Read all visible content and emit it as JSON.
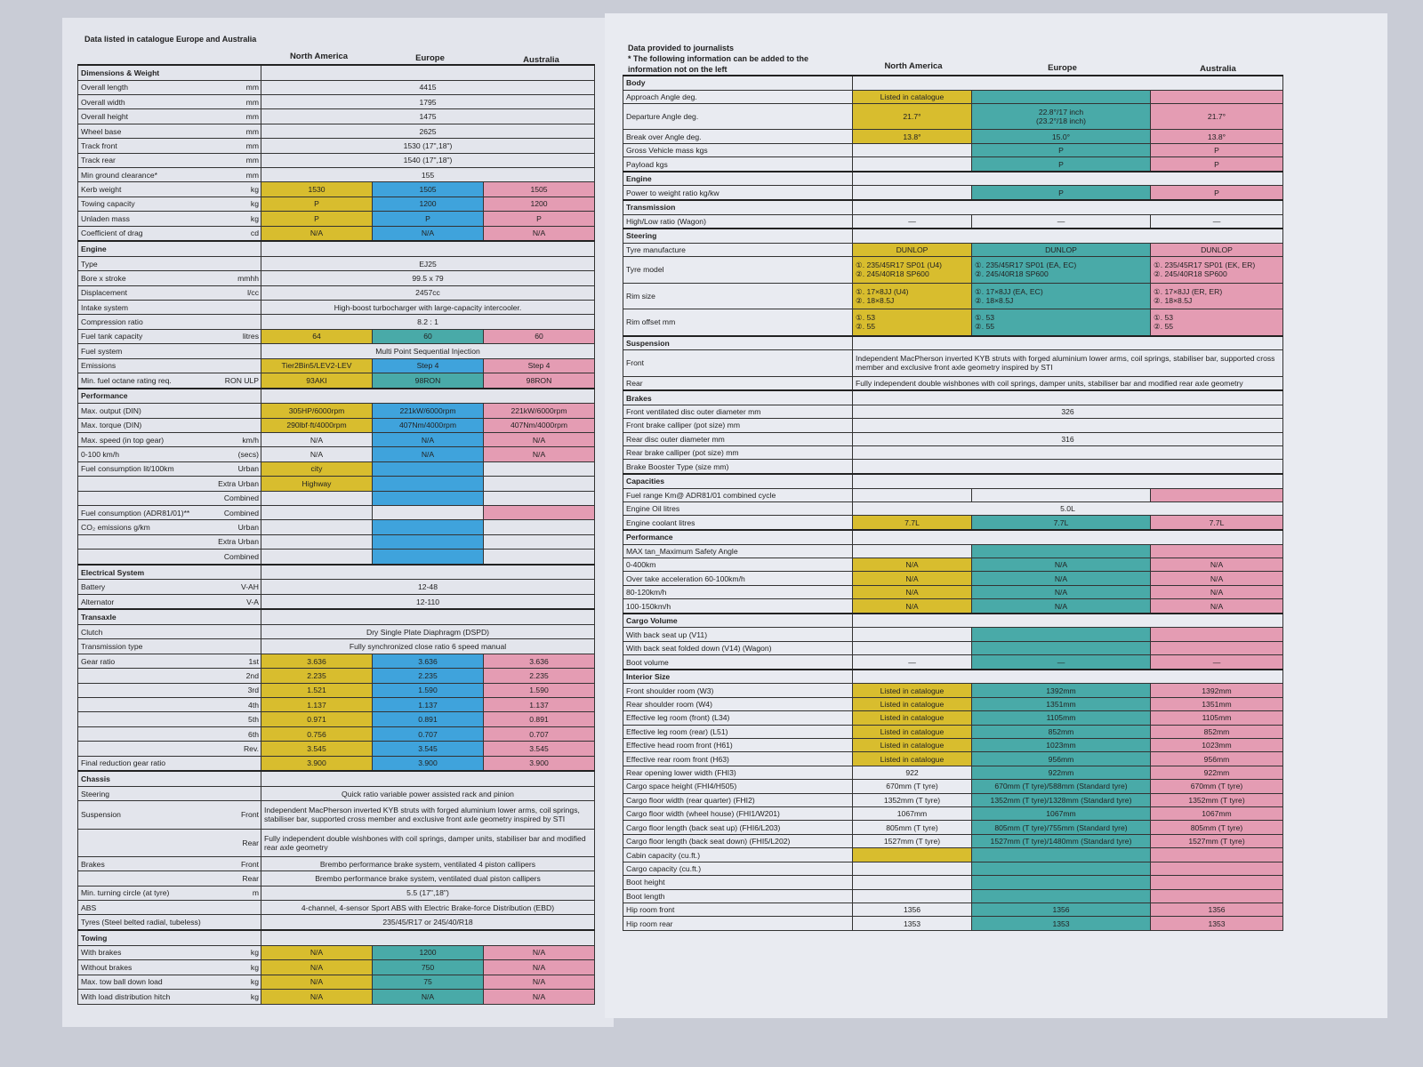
{
  "colors": {
    "y": "#d8bd2e",
    "b": "#3fa3dc",
    "t": "#49aaa8",
    "p": "#e49cb3"
  },
  "left": {
    "title": "Data listed in catalogue   Europe and Australia",
    "columns": [
      "North America",
      "Europe",
      "Australia"
    ],
    "rows": [
      {
        "sec": "Dimensions & Weight"
      },
      {
        "l": "Overall length",
        "u": "mm",
        "s": "4415"
      },
      {
        "l": "Overall width",
        "u": "mm",
        "s": "1795"
      },
      {
        "l": "Overall height",
        "u": "mm",
        "s": "1475"
      },
      {
        "l": "Wheel base",
        "u": "mm",
        "s": "2625"
      },
      {
        "l": "Track front",
        "u": "mm",
        "s": "1530 (17\",18\")"
      },
      {
        "l": "Track rear",
        "u": "mm",
        "s": "1540 (17\",18\")"
      },
      {
        "l": "Min ground clearance*",
        "u": "mm",
        "s": "155"
      },
      {
        "l": "Kerb weight",
        "u": "kg",
        "v": [
          "1530",
          "1505",
          "1505"
        ],
        "c": "ybp"
      },
      {
        "l": "Towing capacity",
        "u": "kg",
        "v": [
          "P",
          "1200",
          "1200"
        ],
        "c": "ybp"
      },
      {
        "l": "Unladen mass",
        "u": "kg",
        "v": [
          "P",
          "P",
          "P"
        ],
        "c": "ybp"
      },
      {
        "l": "Coefficient of drag",
        "u": "cd",
        "v": [
          "N/A",
          "N/A",
          "N/A"
        ],
        "c": "ybp"
      },
      {
        "sec": "Engine"
      },
      {
        "l": "Type",
        "u": "",
        "s": "EJ25"
      },
      {
        "l": "Bore x stroke",
        "u": "mmhh",
        "s": "99.5 x 79"
      },
      {
        "l": "Displacement",
        "u": "l/cc",
        "s": "2457cc"
      },
      {
        "l": "Intake system",
        "u": "",
        "s": "High-boost turbocharger with large-capacity intercooler."
      },
      {
        "l": "Compression ratio",
        "u": "",
        "s": "8.2 : 1"
      },
      {
        "l": "Fuel tank capacity",
        "u": "litres",
        "v": [
          "64",
          "60",
          "60"
        ],
        "c": "ytp"
      },
      {
        "l": "Fuel system",
        "u": "",
        "s": "Multi Point Sequential Injection"
      },
      {
        "l": "Emissions",
        "u": "",
        "v": [
          "Tier2Bin5/LEV2-LEV",
          "Step 4",
          "Step 4"
        ],
        "c": "ybp"
      },
      {
        "l": "Min. fuel octane rating req.",
        "u": "RON ULP",
        "v": [
          "93AKI",
          "98RON",
          "98RON"
        ],
        "c": "ytp"
      },
      {
        "sec": "Performance"
      },
      {
        "l": "Max. output (DIN)",
        "u": "",
        "v": [
          "305HP/6000rpm",
          "221kW/6000rpm",
          "221kW/6000rpm"
        ],
        "c": "ybp"
      },
      {
        "l": "Max. torque (DIN)",
        "u": "",
        "v": [
          "290lbf·ft/4000rpm",
          "407Nm/4000rpm",
          "407Nm/4000rpm"
        ],
        "c": "ybp"
      },
      {
        "l": "Max. speed (in top gear)",
        "u": "km/h",
        "v": [
          "N/A",
          "N/A",
          "N/A"
        ],
        "c": "wbp"
      },
      {
        "l": "0-100 km/h",
        "u": "(secs)",
        "v": [
          "N/A",
          "N/A",
          "N/A"
        ],
        "c": "wbp"
      },
      {
        "l": "Fuel consumption lit/100km",
        "u": "Urban",
        "v": [
          "city",
          "",
          ""
        ],
        "c": "ybw"
      },
      {
        "l": "",
        "u": "Extra Urban",
        "v": [
          "Highway",
          "",
          ""
        ],
        "c": "ybw"
      },
      {
        "l": "",
        "u": "Combined",
        "v": [
          "",
          "",
          ""
        ],
        "c": "wbw"
      },
      {
        "l": "Fuel consumption (ADR81/01)**",
        "u": "Combined",
        "v": [
          "",
          "",
          ""
        ],
        "c": "wwp"
      },
      {
        "l": "CO₂ emissions  g/km",
        "u": "Urban",
        "v": [
          "",
          "",
          ""
        ],
        "c": "wbw"
      },
      {
        "l": "",
        "u": "Extra Urban",
        "v": [
          "",
          "",
          ""
        ],
        "c": "wbw"
      },
      {
        "l": "",
        "u": "Combined",
        "v": [
          "",
          "",
          ""
        ],
        "c": "wbw"
      },
      {
        "sec": "Electrical System"
      },
      {
        "l": "Battery",
        "u": "V-AH",
        "s": "12-48"
      },
      {
        "l": "Alternator",
        "u": "V-A",
        "s": "12-110"
      },
      {
        "sec": "Transaxle"
      },
      {
        "l": "Clutch",
        "u": "",
        "s": "Dry Single Plate Diaphragm (DSPD)"
      },
      {
        "l": "Transmission type",
        "u": "",
        "s": "Fully synchronized close ratio 6 speed manual"
      },
      {
        "l": "Gear ratio",
        "u": "1st",
        "v": [
          "3.636",
          "3.636",
          "3.636"
        ],
        "c": "ybp"
      },
      {
        "l": "",
        "u": "2nd",
        "v": [
          "2.235",
          "2.235",
          "2.235"
        ],
        "c": "ybp"
      },
      {
        "l": "",
        "u": "3rd",
        "v": [
          "1.521",
          "1.590",
          "1.590"
        ],
        "c": "ybp"
      },
      {
        "l": "",
        "u": "4th",
        "v": [
          "1.137",
          "1.137",
          "1.137"
        ],
        "c": "ybp"
      },
      {
        "l": "",
        "u": "5th",
        "v": [
          "0.971",
          "0.891",
          "0.891"
        ],
        "c": "ybp"
      },
      {
        "l": "",
        "u": "6th",
        "v": [
          "0.756",
          "0.707",
          "0.707"
        ],
        "c": "ybp"
      },
      {
        "l": "",
        "u": "Rev.",
        "v": [
          "3.545",
          "3.545",
          "3.545"
        ],
        "c": "ybp"
      },
      {
        "l": "Final reduction gear ratio",
        "u": "",
        "v": [
          "3.900",
          "3.900",
          "3.900"
        ],
        "c": "ybp"
      },
      {
        "sec": "Chassis"
      },
      {
        "l": "Steering",
        "u": "",
        "s": "Quick ratio variable power assisted rack and pinion"
      },
      {
        "l": "Suspension",
        "u": "Front",
        "s": "Independent MacPherson inverted KYB struts with forged aluminium lower arms, coil springs, stabiliser bar, supported cross member and  exclusive front axle geometry inspired by STI",
        "al": "left"
      },
      {
        "l": "",
        "u": "Rear",
        "s": "Fully independent double wishbones with coil springs, damper units, stabiliser bar and modified rear axle geometry",
        "al": "left"
      },
      {
        "l": "Brakes",
        "u": "Front",
        "s": "Brembo performance brake system, ventilated 4 piston callipers"
      },
      {
        "l": "",
        "u": "Rear",
        "s": "Brembo performance brake system, ventilated dual piston callipers"
      },
      {
        "l": "Min. turning circle (at tyre)",
        "u": "m",
        "s": "5.5 (17\",18\")"
      },
      {
        "l": "ABS",
        "u": "",
        "s": "4-channel, 4-sensor Sport ABS with Electric Brake-force Distribution (EBD)"
      },
      {
        "l": "Tyres (Steel belted radial, tubeless)",
        "u": "",
        "s": "235/45/R17 or 245/40/R18"
      },
      {
        "sec": "Towing"
      },
      {
        "l": "With brakes",
        "u": "kg",
        "v": [
          "N/A",
          "1200",
          "N/A"
        ],
        "c": "ytp"
      },
      {
        "l": "Without brakes",
        "u": "kg",
        "v": [
          "N/A",
          "750",
          "N/A"
        ],
        "c": "ytp"
      },
      {
        "l": "Max. tow ball down load",
        "u": "kg",
        "v": [
          "N/A",
          "75",
          "N/A"
        ],
        "c": "ytp"
      },
      {
        "l": "With load distribution hitch",
        "u": "kg",
        "v": [
          "N/A",
          "N/A",
          "N/A"
        ],
        "c": "ytp"
      }
    ]
  },
  "right": {
    "title": "Data provided to journalists",
    "note": "* The following information can be added to the information not on the left",
    "columns": [
      "North America",
      "Europe",
      "Australia"
    ],
    "rows": [
      {
        "sec": "Body"
      },
      {
        "l": "Approach Angle deg.",
        "v": [
          "Listed in catalogue",
          "",
          ""
        ],
        "c": "ytp"
      },
      {
        "l": "Departure Angle deg.",
        "v": [
          "21.7°",
          "22.8°/17 inch\n(23.2°/18 inch)",
          "21.7°"
        ],
        "c": "ytp"
      },
      {
        "l": "Break over Angle deg.",
        "v": [
          "13.8°",
          "15.0°",
          "13.8°"
        ],
        "c": "ytp"
      },
      {
        "l": "Gross Vehicle mass kgs",
        "v": [
          "",
          "P",
          "P"
        ],
        "c": "wtp"
      },
      {
        "l": "Payload kgs",
        "v": [
          "",
          "P",
          "P"
        ],
        "c": "wtp"
      },
      {
        "sec": "Engine"
      },
      {
        "l": "Power to weight ratio kg/kw",
        "v": [
          "",
          "P",
          "P"
        ],
        "c": "wtp"
      },
      {
        "sec": "Transmission"
      },
      {
        "l": "High/Low ratio (Wagon)",
        "v": [
          "—",
          "—",
          "—"
        ],
        "c": "www"
      },
      {
        "sec": "Steering"
      },
      {
        "l": "Tyre manufacture",
        "v": [
          "DUNLOP",
          "DUNLOP",
          "DUNLOP"
        ],
        "c": "ytp"
      },
      {
        "l": "Tyre model",
        "v": [
          "①. 235/45R17  SP01 (U4)\n②. 245/40R18  SP600",
          "①. 235/45R17  SP01 (EA, EC)\n②. 245/40R18  SP600",
          "①. 235/45R17  SP01 (EK, ER)\n②. 245/40R18  SP600"
        ],
        "c": "ytp",
        "al": "left"
      },
      {
        "l": "Rim size",
        "v": [
          "①. 17×8JJ (U4)\n②. 18×8.5J",
          "①. 17×8JJ (EA, EC)\n②. 18×8.5J",
          "①. 17×8JJ (ER, ER)\n②. 18×8.5J"
        ],
        "c": "ytp",
        "al": "left"
      },
      {
        "l": "Rim offset mm",
        "v": [
          "①. 53\n②. 55",
          "①. 53\n②. 55",
          "①. 53\n②. 55"
        ],
        "c": "ytp",
        "al": "left"
      },
      {
        "sec": "Suspension"
      },
      {
        "l": "Front",
        "s": "Independent MacPherson inverted KYB struts with forged aluminium lower arms, coil springs, stabiliser bar, supported cross member and  exclusive front axle geometry inspired by STI",
        "al": "left"
      },
      {
        "l": "Rear",
        "s": "Fully independent double wishbones with coil springs, damper units, stabiliser bar and modified rear axle geometry",
        "al": "left"
      },
      {
        "sec": "Brakes"
      },
      {
        "l": "Front ventilated disc outer diameter mm",
        "s": "326"
      },
      {
        "l": "Front brake calliper (pot size) mm",
        "s": ""
      },
      {
        "l": "Rear disc outer diameter mm",
        "s": "316"
      },
      {
        "l": "Rear brake calliper (pot size) mm",
        "s": ""
      },
      {
        "l": "Brake Booster Type (size mm)",
        "s": ""
      },
      {
        "sec": "Capacities"
      },
      {
        "l": "Fuel range Km@ ADR81/01 combined cycle",
        "v": [
          "",
          "",
          ""
        ],
        "c": "wwp"
      },
      {
        "l": "Engine Oil litres",
        "s": "5.0L"
      },
      {
        "l": "Engine coolant litres",
        "v": [
          "7.7L",
          "7.7L",
          "7.7L"
        ],
        "c": "ytp"
      },
      {
        "sec": "Performance"
      },
      {
        "l": "MAX tan_Maximum Safety Angle",
        "v": [
          "",
          "",
          ""
        ],
        "c": "wtp"
      },
      {
        "l": "0-400km",
        "v": [
          "N/A",
          "N/A",
          "N/A"
        ],
        "c": "ytp"
      },
      {
        "l": "Over take acceleration      60-100km/h",
        "v": [
          "N/A",
          "N/A",
          "N/A"
        ],
        "c": "ytp"
      },
      {
        "l": "                                            80-120km/h",
        "v": [
          "N/A",
          "N/A",
          "N/A"
        ],
        "c": "ytp"
      },
      {
        "l": "                                            100-150km/h",
        "v": [
          "N/A",
          "N/A",
          "N/A"
        ],
        "c": "ytp"
      },
      {
        "sec": "Cargo Volume"
      },
      {
        "l": "With back seat up (V11)",
        "v": [
          "",
          "",
          ""
        ],
        "c": "wtp"
      },
      {
        "l": "With back seat folded down (V14) (Wagon)",
        "v": [
          "",
          "",
          ""
        ],
        "c": "wtp"
      },
      {
        "l": "Boot volume",
        "v": [
          "—",
          "—",
          "—"
        ],
        "c": "wtp"
      },
      {
        "sec": "Interior Size"
      },
      {
        "l": "Front shoulder room (W3)",
        "v": [
          "Listed in catalogue",
          "1392mm",
          "1392mm"
        ],
        "c": "ytp"
      },
      {
        "l": "Rear shoulder room (W4)",
        "v": [
          "Listed in catalogue",
          "1351mm",
          "1351mm"
        ],
        "c": "ytp"
      },
      {
        "l": "Effective leg room (front) (L34)",
        "v": [
          "Listed in catalogue",
          "1105mm",
          "1105mm"
        ],
        "c": "ytp"
      },
      {
        "l": "Effective leg room (rear) (L51)",
        "v": [
          "Listed in catalogue",
          "852mm",
          "852mm"
        ],
        "c": "ytp"
      },
      {
        "l": "Effective head room front (H61)",
        "v": [
          "Listed in catalogue",
          "1023mm",
          "1023mm"
        ],
        "c": "ytp"
      },
      {
        "l": "Effective rear room front (H63)",
        "v": [
          "Listed in catalogue",
          "956mm",
          "956mm"
        ],
        "c": "ytp"
      },
      {
        "l": "Rear opening lower width (FHI3)",
        "v": [
          "922",
          "922mm",
          "922mm"
        ],
        "c": "wtp"
      },
      {
        "l": "Cargo space height (FHI4/H505)",
        "v": [
          "670mm (T tyre)",
          "670mm (T tyre)/588mm (Standard tyre)",
          "670mm (T tyre)"
        ],
        "c": "wtp"
      },
      {
        "l": "Cargo floor width (rear quarter) (FHI2)",
        "v": [
          "1352mm (T tyre)",
          "1352mm (T tyre)/1328mm (Standard tyre)",
          "1352mm (T tyre)"
        ],
        "c": "wtp"
      },
      {
        "l": "Cargo floor width (wheel house) (FHI1/W201)",
        "v": [
          "1067mm",
          "1067mm",
          "1067mm"
        ],
        "c": "wtp"
      },
      {
        "l": "Cargo floor length (back seat up) (FHI6/L203)",
        "v": [
          "805mm (T tyre)",
          "805mm (T tyre)/755mm (Standard tyre)",
          "805mm (T tyre)"
        ],
        "c": "wtp"
      },
      {
        "l": "Cargo floor length (back seat down) (FHI5/L202)",
        "v": [
          "1527mm (T tyre)",
          "1527mm (T tyre)/1480mm (Standard tyre)",
          "1527mm (T tyre)"
        ],
        "c": "wtp"
      },
      {
        "l": "Cabin capacity (cu.ft.)",
        "v": [
          "",
          "",
          ""
        ],
        "c": "ytp"
      },
      {
        "l": "Cargo capacity  (cu.ft.)",
        "v": [
          "",
          "",
          ""
        ],
        "c": "wtp"
      },
      {
        "l": "Boot height",
        "v": [
          "",
          "",
          ""
        ],
        "c": "wtp"
      },
      {
        "l": "Boot length",
        "v": [
          "",
          "",
          ""
        ],
        "c": "wtp"
      },
      {
        "l": "Hip room front",
        "v": [
          "1356",
          "1356",
          "1356"
        ],
        "c": "wtp"
      },
      {
        "l": "Hip room rear",
        "v": [
          "1353",
          "1353",
          "1353"
        ],
        "c": "wtp"
      }
    ]
  }
}
